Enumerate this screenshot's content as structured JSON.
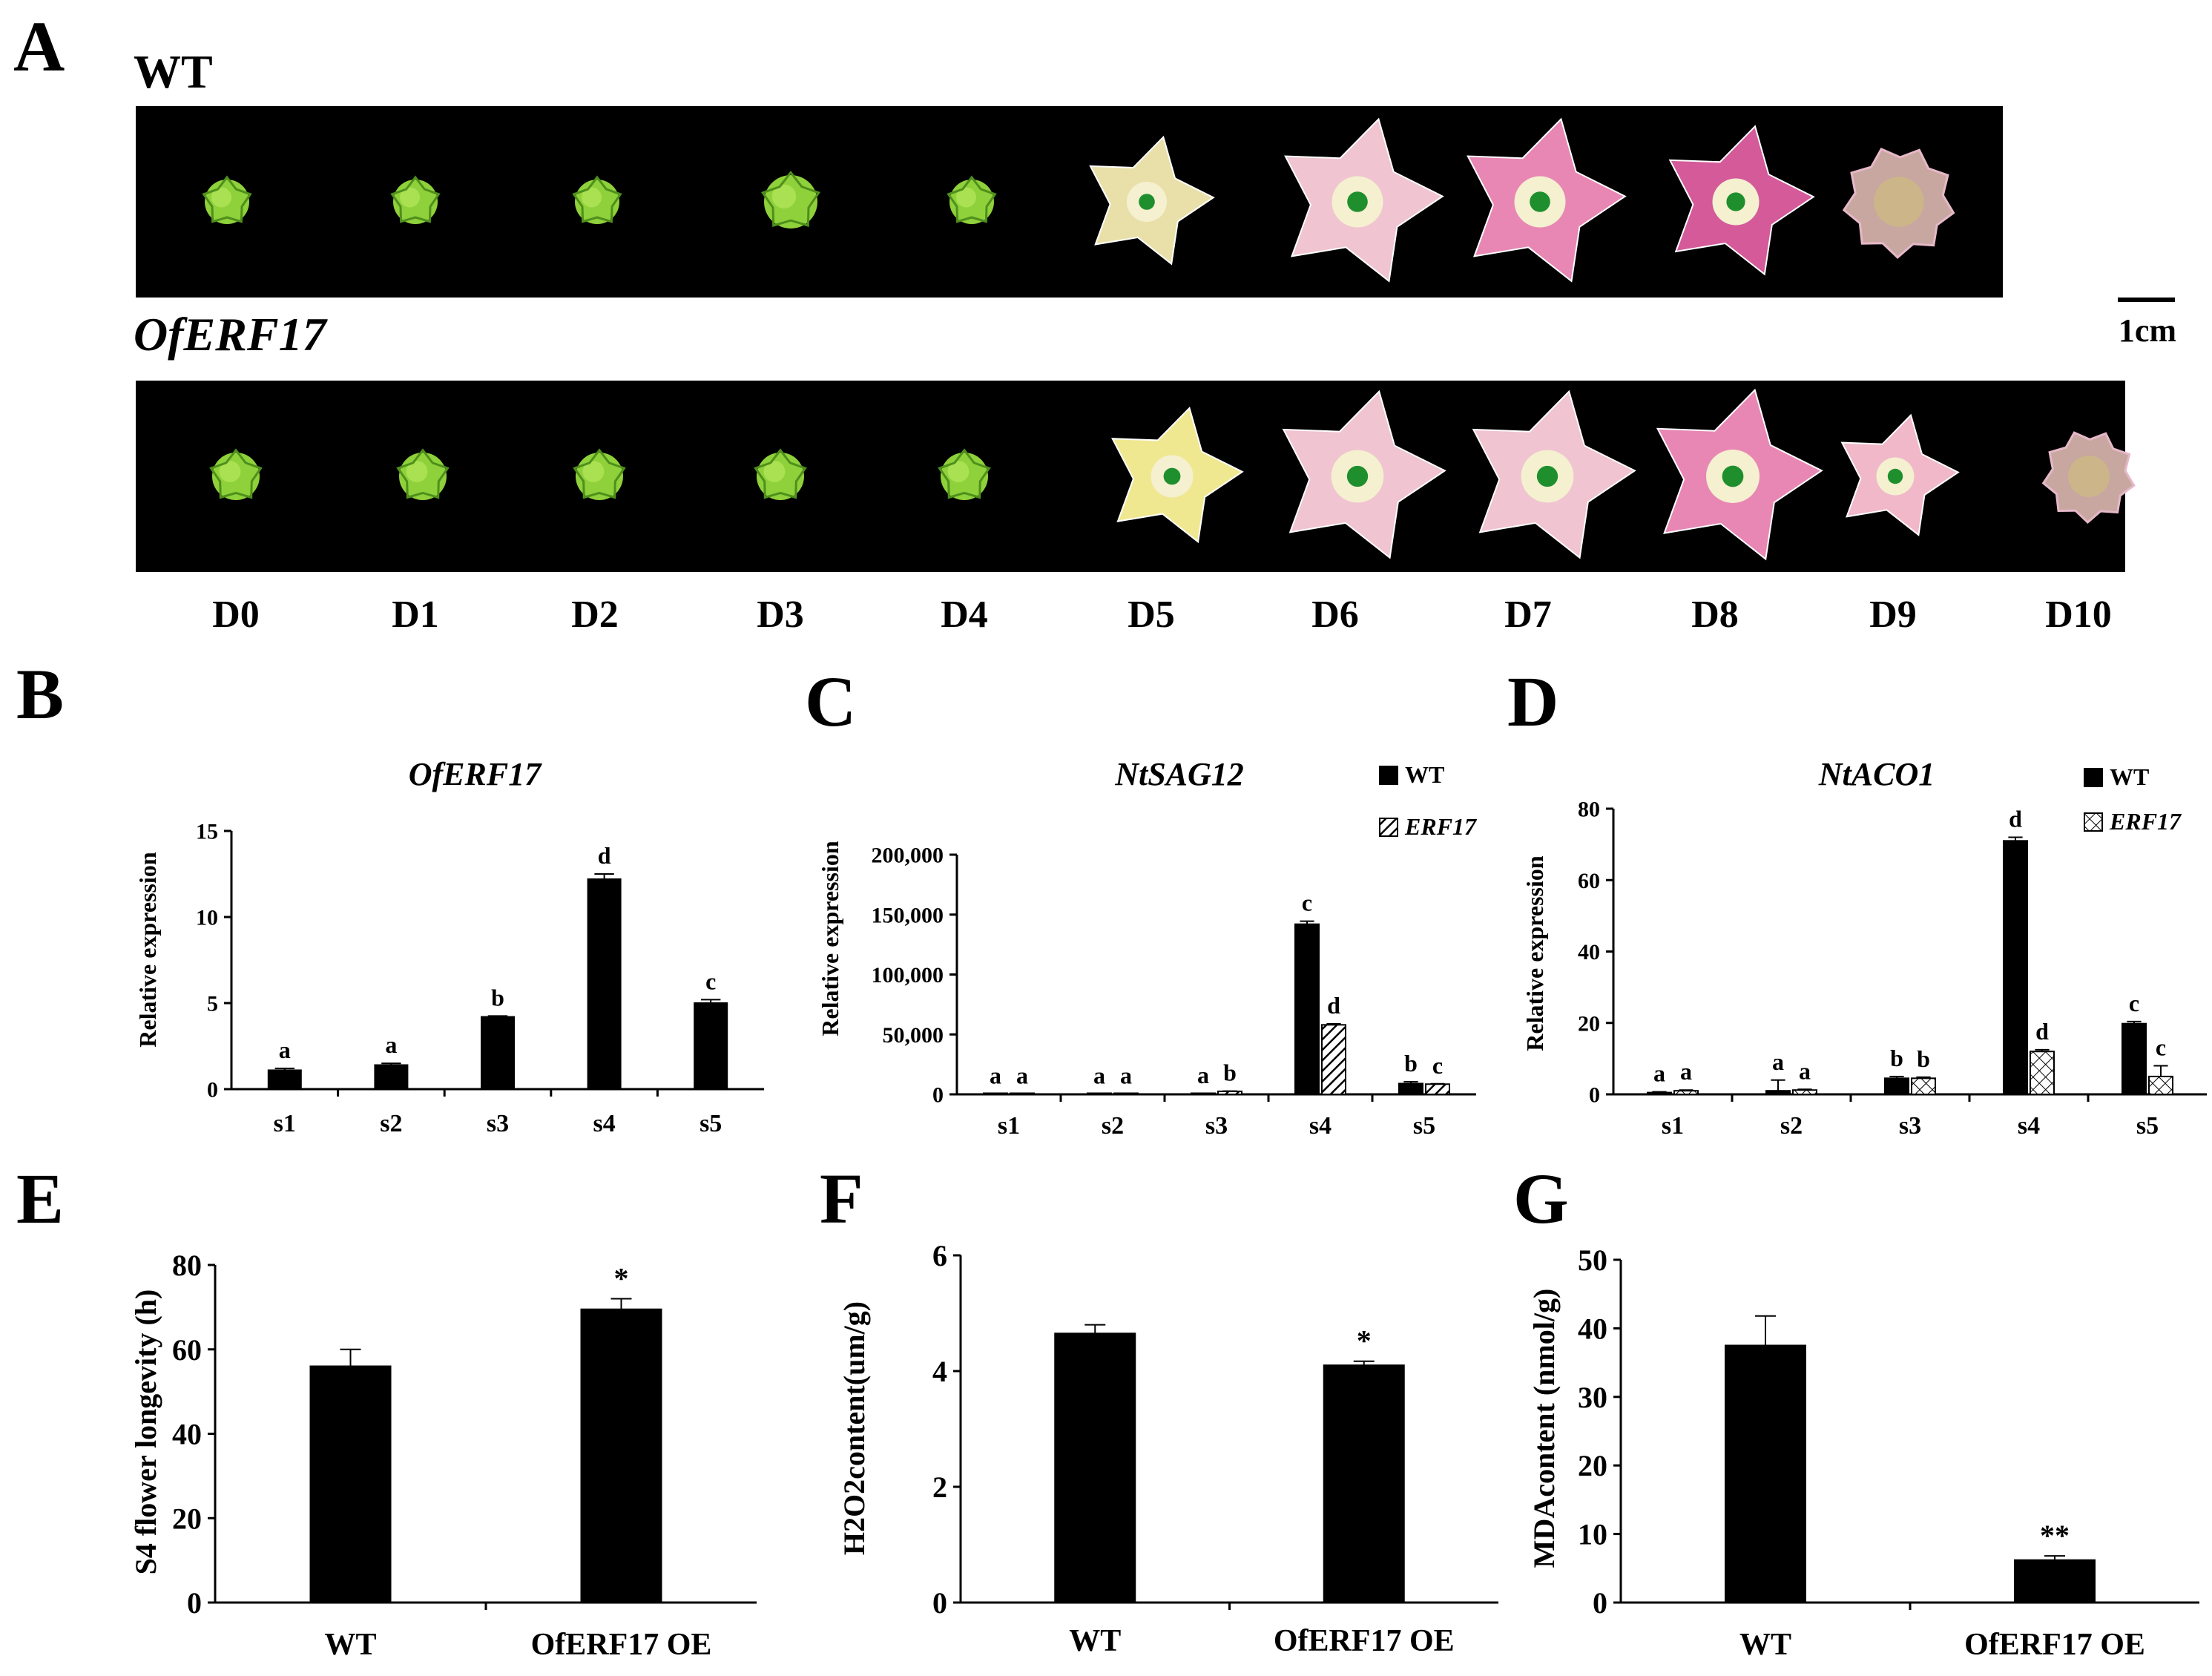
{
  "panels": {
    "A": {
      "label": "A",
      "wt_label": "WT",
      "oe_label": "OfERF17",
      "scale_label": "1cm",
      "days": [
        "D0",
        "D1",
        "D2",
        "D3",
        "D4",
        "D5",
        "D6",
        "D7",
        "D8",
        "D9",
        "D10"
      ]
    },
    "B": {
      "label": "B"
    },
    "C": {
      "label": "C"
    },
    "D": {
      "label": "D"
    },
    "E": {
      "label": "E"
    },
    "F": {
      "label": "F"
    },
    "G": {
      "label": "G"
    }
  },
  "colors": {
    "bar": "#000000",
    "strip_bg": "#000000",
    "bud_green": "#8fd13a",
    "bud_dark": "#4f8f1c",
    "flower_cream": "#e8e0a8",
    "flower_pink_light": "#f0c4d0",
    "flower_pink": "#e887b4",
    "flower_magenta": "#d45a9a",
    "flower_withered": "#c7a7a0"
  },
  "chart_data": [
    {
      "id": "B",
      "type": "bar",
      "title": "OfERF17",
      "ylabel": "Relative expression",
      "xlabel": "",
      "categories": [
        "s1",
        "s2",
        "s3",
        "s4",
        "s5"
      ],
      "series": [
        {
          "name": "OfERF17",
          "values": [
            1.1,
            1.4,
            4.2,
            12.2,
            5.0
          ],
          "errors": [
            0.1,
            0.1,
            0.05,
            0.3,
            0.2
          ],
          "letters": [
            "a",
            "a",
            "b",
            "d",
            "c"
          ]
        }
      ],
      "ylim": [
        0,
        15
      ],
      "yticks": [
        0,
        5,
        10,
        15
      ],
      "ytick_labels": [
        "0",
        "5",
        "10",
        "15"
      ]
    },
    {
      "id": "C",
      "type": "bar",
      "title": "NtSAG12",
      "ylabel": "Relative expression",
      "xlabel": "",
      "categories": [
        "s1",
        "s2",
        "s3",
        "s4",
        "s5"
      ],
      "series": [
        {
          "name": "WT",
          "values": [
            300,
            300,
            400,
            142000,
            9000
          ],
          "errors": [
            100,
            100,
            100,
            2500,
            1500
          ],
          "letters": [
            "a",
            "a",
            "a",
            "c",
            "b"
          ]
        },
        {
          "name": "ERF17",
          "values": [
            300,
            300,
            2500,
            58000,
            8500
          ],
          "errors": [
            100,
            100,
            200,
            800,
            300
          ],
          "letters": [
            "a",
            "a",
            "b",
            "d",
            "c"
          ]
        }
      ],
      "legend": [
        "WT",
        "ERF17"
      ],
      "ylim": [
        0,
        200000
      ],
      "yticks": [
        0,
        50000,
        100000,
        150000,
        200000
      ],
      "ytick_labels": [
        "0",
        "50,000",
        "100,000",
        "150,000",
        "200,000"
      ]
    },
    {
      "id": "D",
      "type": "bar",
      "title": "NtACO1",
      "ylabel": "Relative expression",
      "xlabel": "",
      "categories": [
        "s1",
        "s2",
        "s3",
        "s4",
        "s5"
      ],
      "series": [
        {
          "name": "WT",
          "values": [
            0.5,
            1.0,
            4.5,
            71.0,
            19.8
          ],
          "errors": [
            0.2,
            3.0,
            0.5,
            1.0,
            0.6
          ],
          "letters": [
            "a",
            "a",
            "b",
            "d",
            "c"
          ]
        },
        {
          "name": "ERF17",
          "values": [
            1.0,
            1.2,
            4.5,
            12.0,
            5.0
          ],
          "errors": [
            0.2,
            0.2,
            0.3,
            0.5,
            3.0
          ],
          "letters": [
            "a",
            "a",
            "b",
            "d",
            "c"
          ]
        }
      ],
      "legend": [
        "WT",
        "ERF17"
      ],
      "ylim": [
        0,
        80
      ],
      "yticks": [
        0,
        20,
        40,
        60,
        80
      ],
      "ytick_labels": [
        "0",
        "20",
        "40",
        "60",
        "80"
      ]
    },
    {
      "id": "E",
      "type": "bar",
      "title": "",
      "ylabel": "S4 flower longevity (h)",
      "xlabel": "",
      "categories": [
        "WT",
        "OfERF17 OE"
      ],
      "series": [
        {
          "name": "longevity",
          "values": [
            56,
            69.5
          ],
          "errors": [
            4,
            2.5
          ],
          "letters": [
            "",
            "*"
          ]
        }
      ],
      "ylim": [
        0,
        80
      ],
      "yticks": [
        0,
        20,
        40,
        60,
        80
      ],
      "ytick_labels": [
        "0",
        "20",
        "40",
        "60",
        "80"
      ]
    },
    {
      "id": "F",
      "type": "bar",
      "title": "",
      "ylabel": "H2O2content(um/g)",
      "xlabel": "",
      "categories": [
        "WT",
        "OfERF17 OE"
      ],
      "series": [
        {
          "name": "H2O2",
          "values": [
            4.65,
            4.1
          ],
          "errors": [
            0.15,
            0.07
          ],
          "letters": [
            "",
            "*"
          ]
        }
      ],
      "ylim": [
        0,
        6
      ],
      "yticks": [
        0,
        2,
        4,
        6
      ],
      "ytick_labels": [
        "0",
        "2",
        "4",
        "6"
      ]
    },
    {
      "id": "G",
      "type": "bar",
      "title": "",
      "ylabel": "MDAcontent (nmol/g)",
      "xlabel": "",
      "categories": [
        "WT",
        "OfERF17 OE"
      ],
      "series": [
        {
          "name": "MDA",
          "values": [
            37.5,
            6.2
          ],
          "errors": [
            4.3,
            0.6
          ],
          "letters": [
            "",
            "**"
          ]
        }
      ],
      "ylim": [
        0,
        50
      ],
      "yticks": [
        0,
        10,
        20,
        30,
        40,
        50
      ],
      "ytick_labels": [
        "0",
        "10",
        "20",
        "30",
        "40",
        "50"
      ]
    }
  ]
}
